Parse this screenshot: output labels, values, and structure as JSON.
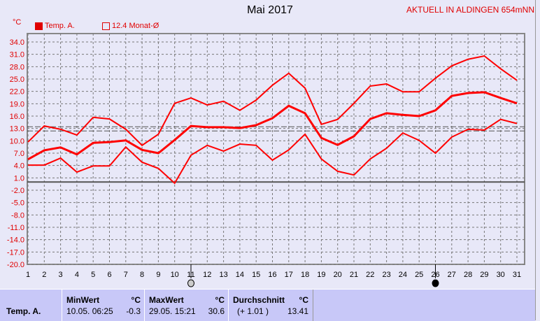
{
  "chart_data": {
    "type": "line",
    "title": "Mai 2017",
    "annotation": "AKTUELL IN ALDINGEN 654mNN",
    "ylabel": "°C",
    "ylim": [
      -20,
      34
    ],
    "yticks": [
      "34.0",
      "31.0",
      "28.0",
      "25.0",
      "22.0",
      "19.0",
      "16.0",
      "13.0",
      "10.0",
      "7.0",
      "4.0",
      "1.0",
      "-2.0",
      "-5.0",
      "-8.0",
      "-11.0",
      "-14.0",
      "-17.0",
      "-20.0"
    ],
    "x": [
      1,
      2,
      3,
      4,
      5,
      6,
      7,
      8,
      9,
      10,
      11,
      12,
      13,
      14,
      15,
      16,
      17,
      18,
      19,
      20,
      21,
      22,
      23,
      24,
      25,
      26,
      27,
      28,
      29,
      30,
      31
    ],
    "grid": true,
    "legend": [
      "Temp. A.",
      "12.4 Monat-Ø"
    ],
    "series": [
      {
        "role": "max",
        "values": [
          9.7,
          13.6,
          12.8,
          11.4,
          15.7,
          15.3,
          12.8,
          8.9,
          11.6,
          19.1,
          20.4,
          18.7,
          19.6,
          17.4,
          19.9,
          23.5,
          26.4,
          22.8,
          14.0,
          15.2,
          19.1,
          23.3,
          23.8,
          21.9,
          21.9,
          25.2,
          28.2,
          29.8,
          30.6,
          27.5,
          24.7
        ]
      },
      {
        "role": "mean",
        "values": [
          5.5,
          7.7,
          8.4,
          6.7,
          9.5,
          9.7,
          10.1,
          7.8,
          7.0,
          10.2,
          13.6,
          13.3,
          13.3,
          13.1,
          13.8,
          15.5,
          18.5,
          16.7,
          10.7,
          9.0,
          11.1,
          15.3,
          16.7,
          16.3,
          16.0,
          17.4,
          20.9,
          21.6,
          21.8,
          20.4,
          19.1
        ]
      },
      {
        "role": "min",
        "values": [
          4.1,
          4.1,
          5.8,
          2.4,
          3.9,
          3.9,
          8.5,
          4.8,
          3.3,
          -0.3,
          6.5,
          8.9,
          7.5,
          9.2,
          8.9,
          5.3,
          7.8,
          11.6,
          5.6,
          2.6,
          1.7,
          5.6,
          8.2,
          11.9,
          10.1,
          7.0,
          10.9,
          12.8,
          12.6,
          15.2,
          14.2
        ]
      }
    ],
    "reference_lines": [
      13.41,
      12.4
    ],
    "moon_phases": [
      {
        "day": 11,
        "phase": "full"
      },
      {
        "day": 26,
        "phase": "new"
      }
    ],
    "color": "#ff0000"
  },
  "stats": {
    "row_label": "Temp. A.",
    "min": {
      "header": "MinWert",
      "unit": "°C",
      "date": "10.05.  06:25",
      "value": "-0.3"
    },
    "max": {
      "header": "MaxWert",
      "unit": "°C",
      "date": "29.05.  15:21",
      "value": "30.6"
    },
    "avg": {
      "header": "Durchschnitt",
      "unit": "°C",
      "diff": "(+ 1.01 )",
      "value": "13.41"
    }
  }
}
